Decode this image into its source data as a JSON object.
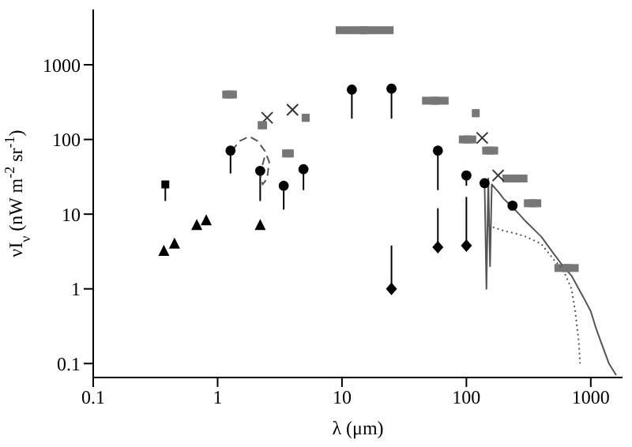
{
  "chart_data": {
    "type": "scatter",
    "xlabel": "λ (μm)",
    "ylabel": "νI$_{ν}$ (nW m$^{-2}$ sr$^{-1}$)",
    "log": "xy",
    "xlim": [
      0.1,
      1800
    ],
    "ylim": [
      0.065,
      5500
    ],
    "xticks": [
      0.1,
      1,
      10,
      100,
      1000
    ],
    "yticks": [
      0.1,
      1,
      10,
      100,
      1000
    ],
    "series": [
      {
        "marker": "circle",
        "color": "#000000",
        "x": [
          1.27,
          2.2,
          3.4,
          4.9,
          12,
          25,
          59,
          100,
          140,
          235
        ],
        "values": [
          71,
          38,
          24,
          40,
          465,
          480,
          71,
          33,
          26,
          13
        ],
        "errors": [
          [
            35,
            71
          ],
          [
            15,
            38
          ],
          [
            11.5,
            24
          ],
          [
            21,
            40
          ],
          [
            190,
            465
          ],
          [
            190,
            480
          ],
          [
            21,
            71
          ],
          [
            24,
            33
          ],
          null,
          null
        ]
      },
      {
        "marker": "diamond",
        "color": "#000000",
        "x": [
          25,
          59,
          100
        ],
        "values": [
          1.0,
          3.6,
          3.8
        ],
        "errors": [
          [
            1.0,
            3.8
          ],
          [
            3.6,
            12
          ],
          [
            3.8,
            17
          ]
        ]
      },
      {
        "marker": "triangle",
        "color": "#000000",
        "x": [
          0.37,
          0.45,
          0.68,
          0.81,
          2.2
        ],
        "values": [
          3.2,
          4.0,
          7.1,
          8.2,
          7.1
        ]
      },
      {
        "marker": "square",
        "color": "#000000",
        "x": [
          0.38
        ],
        "values": [
          25
        ],
        "errors": [
          [
            15,
            25
          ]
        ]
      },
      {
        "marker": "cross",
        "color": "#333333",
        "x": [
          2.5,
          4.0,
          134,
          180
        ],
        "values": [
          195,
          250,
          105,
          33
        ]
      },
      {
        "marker": "square",
        "color": "#777777",
        "x": [
          1.25,
          2.3,
          3.7,
          5.1,
          15,
          56,
          119,
          102,
          155,
          245,
          340,
          640
        ],
        "values": [
          400,
          155,
          65,
          195,
          2900,
          330,
          225,
          100,
          71,
          30,
          14,
          1.9
        ],
        "xerrors": [
          [
            1.09,
            1.43
          ],
          [
            2.1,
            2.5
          ],
          [
            3.3,
            4.1
          ],
          [
            4.8,
            5.5
          ],
          [
            8.9,
            26
          ],
          [
            44,
            72
          ],
          [
            113,
            125
          ],
          [
            87,
            120
          ],
          [
            134,
            180
          ],
          [
            195,
            310
          ],
          [
            290,
            400
          ],
          [
            510,
            800
          ]
        ]
      },
      {
        "type": "line",
        "line_style": "solid",
        "color": "#555555",
        "x": [
          140,
          145,
          150,
          155,
          160,
          180,
          200,
          240,
          300,
          400,
          500,
          600,
          700,
          800,
          900,
          1000,
          1100,
          1200,
          1400,
          1600
        ],
        "values": [
          28,
          1.0,
          30,
          2,
          25,
          20,
          16,
          12,
          8,
          5,
          3,
          2,
          1.5,
          1.0,
          0.7,
          0.5,
          0.3,
          0.2,
          0.1,
          0.07
        ]
      },
      {
        "type": "line",
        "line_style": "dotted",
        "color": "#555555",
        "x": [
          150,
          200,
          250,
          300,
          400,
          500,
          600,
          700,
          750,
          800,
          820
        ],
        "values": [
          7,
          6,
          5.5,
          5,
          4,
          2.5,
          1.8,
          1.0,
          0.5,
          0.2,
          0.1
        ]
      },
      {
        "type": "line",
        "line_style": "dashed",
        "color": "#555555",
        "x": [
          1.3,
          1.5,
          1.8,
          2.1,
          2.4,
          2.6,
          2.5,
          2.3,
          2.2,
          2.4
        ],
        "values": [
          70,
          95,
          110,
          95,
          70,
          50,
          30,
          25,
          35,
          60
        ]
      }
    ]
  }
}
